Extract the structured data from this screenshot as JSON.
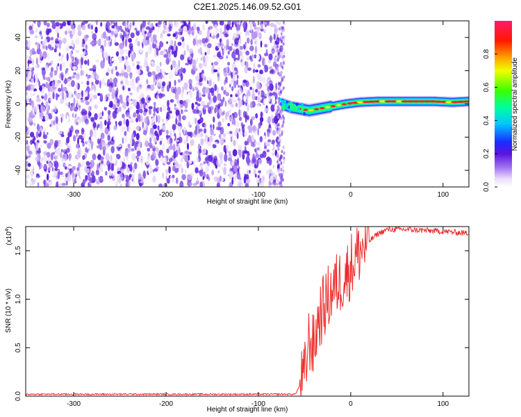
{
  "page": {
    "title": "C2E1.2025.146.09.52.G01"
  },
  "colors": {
    "snr_line": "#ee2b2b",
    "axis": "#000000",
    "spectro_background": "#ffffff",
    "noise_colors": [
      "#ffffff",
      "#ece1fb",
      "#d6bff6",
      "#b892ef",
      "#8a56e6",
      "#6a2ce0",
      "#5317d8"
    ],
    "signal_colors": [
      "#5a19d9",
      "#1b3cff",
      "#00d0ff",
      "#18ff80",
      "#fff000",
      "#ff2020"
    ]
  },
  "chart_data": [
    {
      "type": "heatmap",
      "title": "C2E1.2025.146.09.52.G01",
      "xlabel": "Height of straight line (km)",
      "ylabel": "Frequency (Hz)",
      "xlim": [
        -352,
        128
      ],
      "ylim": [
        -50,
        50
      ],
      "x_ticks": [
        -300,
        -200,
        -100,
        0,
        100
      ],
      "x_tick_labels": [
        "-300",
        "-200",
        "-100",
        "0",
        "100"
      ],
      "y_ticks": [
        -40,
        -20,
        0,
        20,
        40
      ],
      "y_tick_labels": [
        "-40",
        "-20",
        "0",
        "20",
        "40"
      ],
      "noise_region_x": [
        -352,
        -75
      ],
      "signal_frequency_track": {
        "x": [
          -75,
          -65,
          -55,
          -45,
          -35,
          -25,
          -15,
          -5,
          10,
          30,
          60,
          90,
          110,
          128
        ],
        "y": [
          0,
          -2,
          -3,
          -4,
          -3,
          -2,
          -1,
          0,
          1,
          1.5,
          1.5,
          1.5,
          1,
          1.5
        ]
      },
      "colorbar": {
        "label": "Normalized spectral amplitude",
        "range": [
          0,
          1
        ],
        "ticks": [
          0.0,
          0.2,
          0.4,
          0.6,
          0.8
        ],
        "tick_labels": [
          "0.0",
          "0.2",
          "0.4",
          "0.6",
          "0.8"
        ]
      },
      "grid": false
    },
    {
      "type": "line",
      "xlabel": "Height of straight line (km)",
      "ylabel": "SNR (10 * v/v)",
      "y_scale_label": "(x10",
      "y_scale_exponent": "4",
      "y_scale_suffix": ")",
      "xlim": [
        -352,
        128
      ],
      "ylim": [
        0,
        1.75
      ],
      "x_ticks": [
        -300,
        -200,
        -100,
        0,
        100
      ],
      "x_tick_labels": [
        "-300",
        "-200",
        "-100",
        "0",
        "100"
      ],
      "y_ticks": [
        0.0,
        0.5,
        1.0,
        1.5
      ],
      "y_tick_labels": [
        "0.0",
        "0.5",
        "1.0",
        "1.5"
      ],
      "series": [
        {
          "x": [
            -352,
            -300,
            -200,
            -100,
            -60,
            -50,
            -45,
            -40,
            -35,
            -30,
            -25,
            -20,
            -15,
            -10,
            -5,
            0,
            10,
            20,
            30,
            40,
            60,
            80,
            100,
            128
          ],
          "y": [
            0.02,
            0.02,
            0.02,
            0.02,
            0.02,
            0.2,
            0.6,
            0.5,
            0.8,
            0.9,
            1.0,
            1.1,
            1.15,
            1.2,
            1.25,
            1.35,
            1.5,
            1.6,
            1.68,
            1.72,
            1.72,
            1.71,
            1.7,
            1.68
          ]
        }
      ],
      "grid": false
    }
  ]
}
